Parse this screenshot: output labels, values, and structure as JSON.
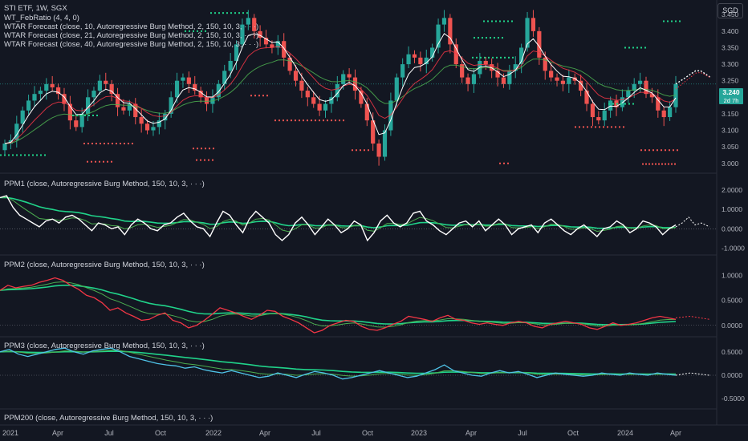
{
  "header": {
    "symbol_line": "STI ETF, 1W, SGX",
    "indicators": [
      "WT_FebRatio (4, 4, 0)",
      "WTAR Forecast (close, 10, Autoregressive Burg Method, 2, 150, 10, 3, · · ·)",
      "WTAR Forecast (close, 21, Autoregressive Burg Method, 2, 150, 10, 3, · · ·)",
      "WTAR Forecast (close, 40, Autoregressive Burg Method, 2, 150, 10, 3, · · ·)"
    ]
  },
  "currency": "SGD",
  "last_price": {
    "value": "3.240",
    "countdown": "2d 7h"
  },
  "panes": [
    {
      "title": "",
      "ticks": [
        "3.450",
        "3.400",
        "3.350",
        "3.300",
        "3.250",
        "3.200",
        "3.150",
        "3.100",
        "3.050",
        "3.000"
      ]
    },
    {
      "title": "PPM1 (close, Autoregressive Burg Method, 150, 10, 3, · · ·)",
      "ticks": [
        "2.0000",
        "1.0000",
        "0.0000",
        "-1.0000"
      ]
    },
    {
      "title": "PPM2 (close, Autoregressive Burg Method, 150, 10, 3, · · ·)",
      "ticks": [
        "1.0000",
        "0.5000",
        "0.0000"
      ]
    },
    {
      "title": "PPM3 (close, Autoregressive Burg Method, 150, 10, 3, · · ·)",
      "ticks": [
        "0.5000",
        "0.0000",
        "-0.5000"
      ]
    },
    {
      "title": "PPM200 (close, Autoregressive Burg Method, 150, 10, 3, · · ·)",
      "ticks": []
    }
  ],
  "time_axis": [
    "2021",
    "Apr",
    "Jul",
    "Oct",
    "2022",
    "Apr",
    "Jul",
    "Oct",
    "2023",
    "Apr",
    "Jul",
    "Oct",
    "2024",
    "Apr"
  ],
  "chart_data": {
    "type": "candlestick",
    "interval": "1W",
    "x_range": [
      "2021-01",
      "2024-05"
    ],
    "price_range": [
      2.98,
      3.47
    ],
    "price_series": [
      3.06,
      3.07,
      3.12,
      3.16,
      3.19,
      3.21,
      3.22,
      3.24,
      3.23,
      3.21,
      3.18,
      3.13,
      3.11,
      3.15,
      3.2,
      3.22,
      3.25,
      3.24,
      3.21,
      3.17,
      3.16,
      3.18,
      3.14,
      3.12,
      3.1,
      3.11,
      3.13,
      3.15,
      3.2,
      3.25,
      3.26,
      3.24,
      3.22,
      3.2,
      3.18,
      3.2,
      3.24,
      3.28,
      3.31,
      3.36,
      3.42,
      3.44,
      3.4,
      3.38,
      3.36,
      3.35,
      3.37,
      3.32,
      3.28,
      3.25,
      3.22,
      3.2,
      3.18,
      3.16,
      3.18,
      3.2,
      3.24,
      3.27,
      3.26,
      3.22,
      3.18,
      3.13,
      3.06,
      3.02,
      3.1,
      3.19,
      3.26,
      3.3,
      3.33,
      3.32,
      3.3,
      3.32,
      3.35,
      3.42,
      3.44,
      3.36,
      3.3,
      3.26,
      3.24,
      3.27,
      3.31,
      3.3,
      3.28,
      3.26,
      3.24,
      3.28,
      3.3,
      3.35,
      3.44,
      3.4,
      3.32,
      3.28,
      3.26,
      3.25,
      3.24,
      3.26,
      3.25,
      3.22,
      3.18,
      3.14,
      3.13,
      3.16,
      3.19,
      3.17,
      3.2,
      3.22,
      3.24,
      3.25,
      3.21,
      3.2,
      3.16,
      3.14,
      3.17,
      3.24
    ],
    "forecast": [
      3.24,
      3.25,
      3.26,
      3.27,
      3.28,
      3.28,
      3.27,
      3.26
    ],
    "ppm1": [
      1.6,
      1.7,
      1.1,
      0.7,
      0.5,
      0.3,
      0.1,
      0.4,
      0.5,
      0.3,
      0.6,
      0.7,
      0.5,
      0.2,
      -0.1,
      0.3,
      0.2,
      0.0,
      0.1,
      -0.3,
      0.2,
      0.5,
      0.3,
      0.0,
      -0.1,
      0.2,
      0.3,
      0.6,
      0.8,
      0.4,
      0.1,
      0.0,
      -0.4,
      0.3,
      0.9,
      0.7,
      0.2,
      -0.2,
      0.5,
      0.9,
      0.6,
      0.3,
      -0.3,
      -0.6,
      -0.3,
      0.3,
      0.6,
      0.2,
      -0.3,
      0.1,
      0.5,
      0.2,
      -0.2,
      0.0,
      0.4,
      0.2,
      -0.6,
      -0.2,
      0.4,
      0.7,
      0.3,
      0.1,
      0.3,
      0.8,
      0.9,
      0.4,
      0.2,
      -0.1,
      -0.3,
      0.0,
      0.3,
      0.4,
      0.1,
      0.4,
      -0.1,
      0.2,
      0.5,
      0.2,
      -0.3,
      0.0,
      0.1,
      0.2,
      -0.2,
      0.3,
      0.5,
      0.2,
      -0.1,
      -0.3,
      0.0,
      0.2,
      -0.1,
      -0.4,
      0.0,
      0.1,
      0.4,
      0.2,
      -0.2,
      0.0,
      0.4,
      0.3,
      0.1,
      -0.3,
      0.0,
      0.2
    ],
    "ppm2": [
      0.7,
      0.8,
      0.75,
      0.78,
      0.8,
      0.86,
      0.9,
      0.95,
      0.9,
      0.8,
      0.72,
      0.6,
      0.55,
      0.45,
      0.3,
      0.35,
      0.25,
      0.18,
      0.1,
      0.12,
      0.2,
      0.25,
      0.1,
      0.05,
      -0.05,
      0.0,
      0.1,
      0.22,
      0.35,
      0.3,
      0.25,
      0.18,
      0.12,
      0.2,
      0.3,
      0.28,
      0.18,
      0.12,
      0.05,
      -0.05,
      -0.15,
      -0.1,
      0.0,
      0.05,
      0.1,
      0.08,
      -0.02,
      -0.08,
      -0.1,
      -0.05,
      0.02,
      0.08,
      0.18,
      0.15,
      0.12,
      0.08,
      0.15,
      0.2,
      0.12,
      0.1,
      0.05,
      0.02,
      0.05,
      0.02,
      0.0,
      0.05,
      0.08,
      0.05,
      -0.02,
      -0.05,
      0.02,
      0.05,
      0.08,
      0.05,
      0.02,
      -0.05,
      -0.08,
      -0.02,
      0.05,
      0.0,
      0.02,
      0.05,
      0.1,
      0.15,
      0.18,
      0.15,
      0.12
    ],
    "ppm3": [
      0.5,
      0.55,
      0.45,
      0.4,
      0.45,
      0.5,
      0.55,
      0.58,
      0.5,
      0.45,
      0.52,
      0.55,
      0.58,
      0.5,
      0.4,
      0.35,
      0.3,
      0.25,
      0.22,
      0.2,
      0.15,
      0.18,
      0.12,
      0.08,
      0.05,
      0.1,
      0.05,
      0.0,
      -0.05,
      -0.02,
      0.05,
      0.0,
      -0.05,
      0.02,
      0.08,
      0.05,
      0.0,
      -0.08,
      -0.05,
      0.0,
      0.05,
      0.1,
      0.05,
      0.0,
      -0.05,
      -0.02,
      0.05,
      0.12,
      0.22,
      0.1,
      0.05,
      0.0,
      -0.02,
      0.05,
      0.1,
      0.05,
      0.08,
      0.02,
      -0.05,
      0.0,
      0.05,
      0.02,
      0.0,
      -0.02,
      0.0,
      0.05,
      0.02,
      0.0,
      0.05,
      0.02,
      0.0,
      0.05,
      0.02,
      0.0
    ],
    "colors": {
      "up": "#26a69a",
      "down": "#ef5350",
      "fast": "#ffffff",
      "slow": "#4caf50",
      "signal": "#f23645",
      "bright": "#20d38a",
      "ppm3": "#4fc3e8"
    }
  }
}
